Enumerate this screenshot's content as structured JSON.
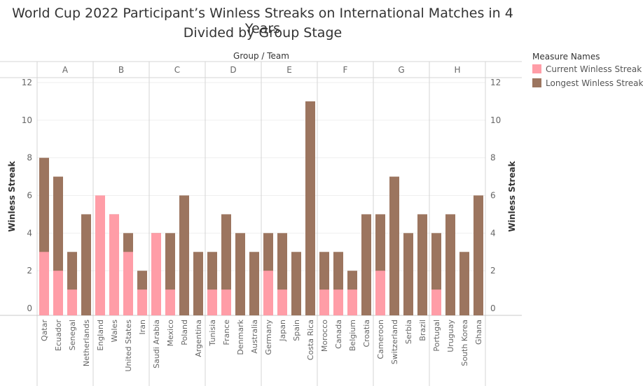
{
  "title_line1": "World Cup 2022 Participant’s Winless Streaks on International Matches in 4 Years",
  "title_line2": "Divided by Group Stage",
  "legend": {
    "title": "Measure Names",
    "items": [
      {
        "label": "Current Winless Streak",
        "color": "#FF9DA7"
      },
      {
        "label": "Longest Winless Streak",
        "color": "#9C755F"
      }
    ]
  },
  "chart_data": {
    "type": "bar",
    "stacked": "overlay",
    "header": "Group / Team",
    "ylabel": "Winless Streak",
    "ylabel_right": "Winless Streak",
    "ylim": [
      0,
      12
    ],
    "yticks": [
      0,
      2,
      4,
      6,
      8,
      10,
      12
    ],
    "colors": {
      "current": "#FF9DA7",
      "longest": "#9C755F"
    },
    "groups": [
      {
        "name": "A",
        "teams": [
          {
            "team": "Qatar",
            "current": 3,
            "longest": 8
          },
          {
            "team": "Ecuador",
            "current": 2,
            "longest": 7
          },
          {
            "team": "Senegal",
            "current": 1,
            "longest": 3
          },
          {
            "team": "Netherlands",
            "current": 0,
            "longest": 5
          }
        ]
      },
      {
        "name": "B",
        "teams": [
          {
            "team": "England",
            "current": 6,
            "longest": 6
          },
          {
            "team": "Wales",
            "current": 5,
            "longest": 5
          },
          {
            "team": "United States",
            "current": 3,
            "longest": 4
          },
          {
            "team": "Iran",
            "current": 1,
            "longest": 2
          }
        ]
      },
      {
        "name": "C",
        "teams": [
          {
            "team": "Saudi Arabia",
            "current": 4,
            "longest": 4
          },
          {
            "team": "Mexico",
            "current": 1,
            "longest": 4
          },
          {
            "team": "Poland",
            "current": 0,
            "longest": 6
          },
          {
            "team": "Argentina",
            "current": 0,
            "longest": 3
          }
        ]
      },
      {
        "name": "D",
        "teams": [
          {
            "team": "Tunisia",
            "current": 1,
            "longest": 3
          },
          {
            "team": "France",
            "current": 1,
            "longest": 5
          },
          {
            "team": "Denmark",
            "current": 0,
            "longest": 4
          },
          {
            "team": "Australia",
            "current": 0,
            "longest": 3
          }
        ]
      },
      {
        "name": "E",
        "teams": [
          {
            "team": "Germany",
            "current": 2,
            "longest": 4
          },
          {
            "team": "Japan",
            "current": 1,
            "longest": 4
          },
          {
            "team": "Spain",
            "current": 0,
            "longest": 3
          },
          {
            "team": "Costa Rica",
            "current": 0,
            "longest": 11
          }
        ]
      },
      {
        "name": "F",
        "teams": [
          {
            "team": "Morocco",
            "current": 1,
            "longest": 3
          },
          {
            "team": "Canada",
            "current": 1,
            "longest": 3
          },
          {
            "team": "Belgium",
            "current": 1,
            "longest": 2
          },
          {
            "team": "Croatia",
            "current": 0,
            "longest": 5
          }
        ]
      },
      {
        "name": "G",
        "teams": [
          {
            "team": "Cameroon",
            "current": 2,
            "longest": 5
          },
          {
            "team": "Switzerland",
            "current": 0,
            "longest": 7
          },
          {
            "team": "Serbia",
            "current": 0,
            "longest": 4
          },
          {
            "team": "Brazil",
            "current": 0,
            "longest": 5
          }
        ]
      },
      {
        "name": "H",
        "teams": [
          {
            "team": "Portugal",
            "current": 1,
            "longest": 4
          },
          {
            "team": "Uruguay",
            "current": 0,
            "longest": 5
          },
          {
            "team": "South Korea",
            "current": 0,
            "longest": 3
          },
          {
            "team": "Ghana",
            "current": 0,
            "longest": 6
          }
        ]
      }
    ]
  }
}
